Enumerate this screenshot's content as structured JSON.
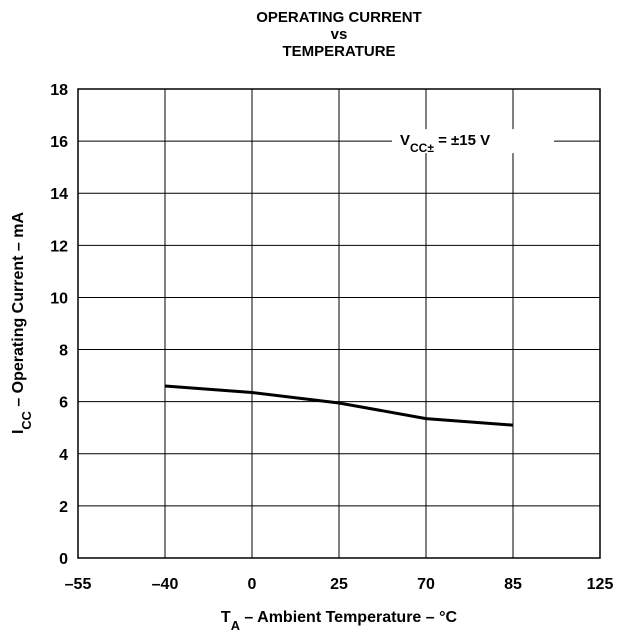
{
  "chart_data": {
    "type": "line",
    "title": [
      "OPERATING CURRENT",
      "vs",
      "TEMPERATURE"
    ],
    "xlabel": {
      "main": "T",
      "sub": "A",
      "rest": " – Ambient Temperature – °C"
    },
    "ylabel": {
      "main": "I",
      "sub": "CC",
      "rest": " – Operating Current – mA"
    },
    "annotation": {
      "main": "V",
      "sub": "CC±",
      "rest": " = ±15 V"
    },
    "categories": [
      "–55",
      "–40",
      "0",
      "25",
      "70",
      "85",
      "125"
    ],
    "series": [
      {
        "name": "ICC",
        "color": "#000000",
        "values": [
          null,
          6.6,
          6.35,
          5.95,
          5.35,
          5.1,
          null
        ]
      }
    ],
    "ylim": [
      0,
      18
    ],
    "yticks": [
      0,
      2,
      4,
      6,
      8,
      10,
      12,
      14,
      16,
      18
    ],
    "grid": true
  }
}
